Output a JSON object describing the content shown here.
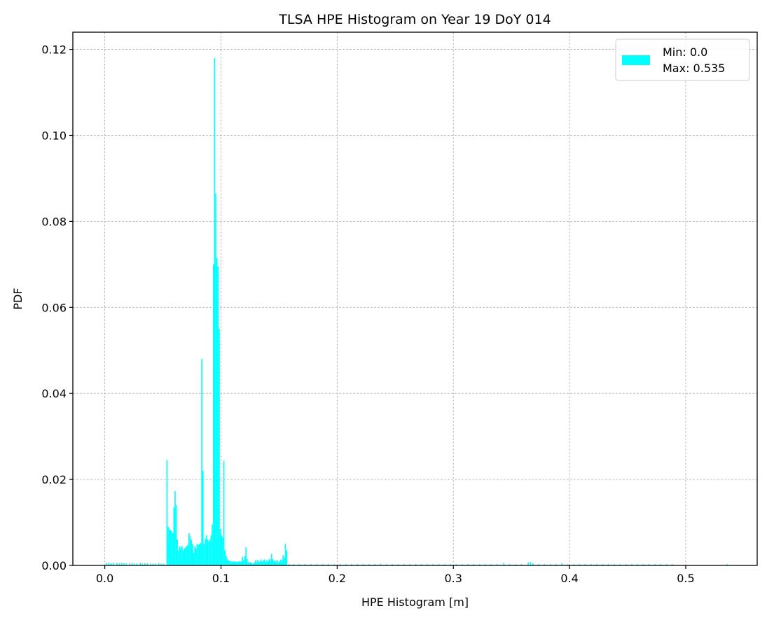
{
  "chart_data": {
    "type": "bar",
    "title": "TLSA HPE Histogram on Year 19 DoY 014",
    "xlabel": "HPE Histogram [m]",
    "ylabel": "PDF",
    "xlim": [
      -0.0275,
      0.5615
    ],
    "ylim": [
      0,
      0.124
    ],
    "xticks": [
      0.0,
      0.1,
      0.2,
      0.3,
      0.4,
      0.5
    ],
    "xtick_labels": [
      "0.0",
      "0.1",
      "0.2",
      "0.3",
      "0.4",
      "0.5"
    ],
    "yticks": [
      0.0,
      0.02,
      0.04,
      0.06,
      0.08,
      0.1,
      0.12
    ],
    "ytick_labels": [
      "0.00",
      "0.02",
      "0.04",
      "0.06",
      "0.08",
      "0.10",
      "0.12"
    ],
    "grid": true,
    "legend": {
      "placement": "top-right",
      "label_lines": [
        "Min: 0.0",
        "Max: 0.535"
      ]
    },
    "bar_color": "#00ffff",
    "bin_width": 0.001,
    "series": [
      {
        "bins": [
          [
            0.001,
            0.0006
          ],
          [
            0.003,
            0.0006
          ],
          [
            0.005,
            0.0005
          ],
          [
            0.007,
            0.0006
          ],
          [
            0.01,
            0.0006
          ],
          [
            0.012,
            0.0005
          ],
          [
            0.014,
            0.0006
          ],
          [
            0.016,
            0.0005
          ],
          [
            0.018,
            0.0005
          ],
          [
            0.021,
            0.0005
          ],
          [
            0.023,
            0.0006
          ],
          [
            0.025,
            0.0004
          ],
          [
            0.027,
            0.0004
          ],
          [
            0.03,
            0.0006
          ],
          [
            0.032,
            0.0004
          ],
          [
            0.034,
            0.0005
          ],
          [
            0.036,
            0.0005
          ],
          [
            0.039,
            0.0004
          ],
          [
            0.041,
            0.0004
          ],
          [
            0.043,
            0.0004
          ],
          [
            0.046,
            0.0005
          ],
          [
            0.048,
            0.0004
          ],
          [
            0.05,
            0.0004
          ],
          [
            0.053,
            0.0245
          ],
          [
            0.054,
            0.009
          ],
          [
            0.055,
            0.0085
          ],
          [
            0.056,
            0.0082
          ],
          [
            0.057,
            0.008
          ],
          [
            0.058,
            0.0075
          ],
          [
            0.059,
            0.0135
          ],
          [
            0.06,
            0.0173
          ],
          [
            0.061,
            0.014
          ],
          [
            0.062,
            0.006
          ],
          [
            0.063,
            0.0035
          ],
          [
            0.064,
            0.0045
          ],
          [
            0.065,
            0.004
          ],
          [
            0.066,
            0.0045
          ],
          [
            0.067,
            0.0035
          ],
          [
            0.068,
            0.004
          ],
          [
            0.069,
            0.0042
          ],
          [
            0.07,
            0.0045
          ],
          [
            0.071,
            0.0048
          ],
          [
            0.072,
            0.0075
          ],
          [
            0.073,
            0.0068
          ],
          [
            0.074,
            0.006
          ],
          [
            0.075,
            0.005
          ],
          [
            0.076,
            0.003
          ],
          [
            0.077,
            0.0045
          ],
          [
            0.078,
            0.004
          ],
          [
            0.079,
            0.005
          ],
          [
            0.08,
            0.0048
          ],
          [
            0.081,
            0.005
          ],
          [
            0.082,
            0.0052
          ],
          [
            0.083,
            0.048
          ],
          [
            0.084,
            0.022
          ],
          [
            0.085,
            0.005
          ],
          [
            0.086,
            0.0062
          ],
          [
            0.087,
            0.007
          ],
          [
            0.088,
            0.006
          ],
          [
            0.089,
            0.0055
          ],
          [
            0.09,
            0.006
          ],
          [
            0.091,
            0.007
          ],
          [
            0.092,
            0.0095
          ],
          [
            0.093,
            0.07
          ],
          [
            0.094,
            0.118
          ],
          [
            0.095,
            0.0865
          ],
          [
            0.096,
            0.0715
          ],
          [
            0.097,
            0.0695
          ],
          [
            0.098,
            0.055
          ],
          [
            0.099,
            0.0085
          ],
          [
            0.1,
            0.007
          ],
          [
            0.101,
            0.0065
          ],
          [
            0.102,
            0.0243
          ],
          [
            0.103,
            0.0035
          ],
          [
            0.104,
            0.0022
          ],
          [
            0.105,
            0.0015
          ],
          [
            0.106,
            0.0012
          ],
          [
            0.107,
            0.001
          ],
          [
            0.108,
            0.001
          ],
          [
            0.109,
            0.0008
          ],
          [
            0.11,
            0.001
          ],
          [
            0.111,
            0.0009
          ],
          [
            0.112,
            0.0008
          ],
          [
            0.113,
            0.0009
          ],
          [
            0.114,
            0.0008
          ],
          [
            0.115,
            0.001
          ],
          [
            0.116,
            0.0009
          ],
          [
            0.117,
            0.0009
          ],
          [
            0.118,
            0.002
          ],
          [
            0.119,
            0.0012
          ],
          [
            0.12,
            0.0022
          ],
          [
            0.121,
            0.0042
          ],
          [
            0.122,
            0.0015
          ],
          [
            0.123,
            0.0008
          ],
          [
            0.124,
            0.0006
          ],
          [
            0.125,
            0.0008
          ],
          [
            0.126,
            0.0006
          ],
          [
            0.127,
            0.0004
          ],
          [
            0.128,
            0.0006
          ],
          [
            0.129,
            0.0012
          ],
          [
            0.13,
            0.0008
          ],
          [
            0.131,
            0.0013
          ],
          [
            0.132,
            0.0008
          ],
          [
            0.133,
            0.001
          ],
          [
            0.134,
            0.0014
          ],
          [
            0.135,
            0.0008
          ],
          [
            0.136,
            0.0012
          ],
          [
            0.137,
            0.0014
          ],
          [
            0.138,
            0.0008
          ],
          [
            0.139,
            0.0012
          ],
          [
            0.14,
            0.001
          ],
          [
            0.141,
            0.0015
          ],
          [
            0.142,
            0.0012
          ],
          [
            0.143,
            0.0027
          ],
          [
            0.144,
            0.0015
          ],
          [
            0.145,
            0.001
          ],
          [
            0.146,
            0.0012
          ],
          [
            0.147,
            0.0009
          ],
          [
            0.148,
            0.0013
          ],
          [
            0.149,
            0.0006
          ],
          [
            0.15,
            0.001
          ],
          [
            0.151,
            0.0014
          ],
          [
            0.152,
            0.0012
          ],
          [
            0.153,
            0.0024
          ],
          [
            0.154,
            0.0018
          ],
          [
            0.155,
            0.005
          ],
          [
            0.156,
            0.0035
          ],
          [
            0.158,
            0.0003
          ],
          [
            0.162,
            0.0003
          ],
          [
            0.167,
            0.0003
          ],
          [
            0.172,
            0.0003
          ],
          [
            0.177,
            0.0003
          ],
          [
            0.182,
            0.0003
          ],
          [
            0.187,
            0.0003
          ],
          [
            0.192,
            0.0003
          ],
          [
            0.197,
            0.0003
          ],
          [
            0.202,
            0.0003
          ],
          [
            0.207,
            0.0003
          ],
          [
            0.212,
            0.0003
          ],
          [
            0.217,
            0.0003
          ],
          [
            0.222,
            0.0003
          ],
          [
            0.227,
            0.0003
          ],
          [
            0.232,
            0.0003
          ],
          [
            0.237,
            0.0004
          ],
          [
            0.242,
            0.0003
          ],
          [
            0.247,
            0.0003
          ],
          [
            0.252,
            0.0003
          ],
          [
            0.257,
            0.0003
          ],
          [
            0.262,
            0.0003
          ],
          [
            0.267,
            0.0003
          ],
          [
            0.272,
            0.0003
          ],
          [
            0.277,
            0.0003
          ],
          [
            0.282,
            0.0003
          ],
          [
            0.287,
            0.0003
          ],
          [
            0.292,
            0.0003
          ],
          [
            0.297,
            0.0003
          ],
          [
            0.302,
            0.0003
          ],
          [
            0.307,
            0.0003
          ],
          [
            0.312,
            0.0003
          ],
          [
            0.317,
            0.0003
          ],
          [
            0.322,
            0.0003
          ],
          [
            0.327,
            0.0003
          ],
          [
            0.332,
            0.0003
          ],
          [
            0.337,
            0.0003
          ],
          [
            0.343,
            0.0006
          ],
          [
            0.348,
            0.0003
          ],
          [
            0.353,
            0.0003
          ],
          [
            0.358,
            0.0003
          ],
          [
            0.364,
            0.0007
          ],
          [
            0.366,
            0.0008
          ],
          [
            0.368,
            0.0005
          ],
          [
            0.373,
            0.0003
          ],
          [
            0.378,
            0.0003
          ],
          [
            0.383,
            0.0003
          ],
          [
            0.388,
            0.0003
          ],
          [
            0.393,
            0.0005
          ],
          [
            0.398,
            0.0003
          ],
          [
            0.403,
            0.0003
          ],
          [
            0.408,
            0.0003
          ],
          [
            0.413,
            0.0003
          ],
          [
            0.418,
            0.0003
          ],
          [
            0.423,
            0.0003
          ],
          [
            0.428,
            0.0003
          ],
          [
            0.433,
            0.0003
          ],
          [
            0.438,
            0.0003
          ],
          [
            0.443,
            0.0003
          ],
          [
            0.448,
            0.0003
          ],
          [
            0.453,
            0.0003
          ],
          [
            0.458,
            0.0003
          ],
          [
            0.463,
            0.0003
          ],
          [
            0.468,
            0.0003
          ],
          [
            0.473,
            0.0003
          ],
          [
            0.478,
            0.0003
          ],
          [
            0.483,
            0.0003
          ],
          [
            0.488,
            0.0003
          ],
          [
            0.535,
            0.0003
          ]
        ]
      }
    ]
  }
}
